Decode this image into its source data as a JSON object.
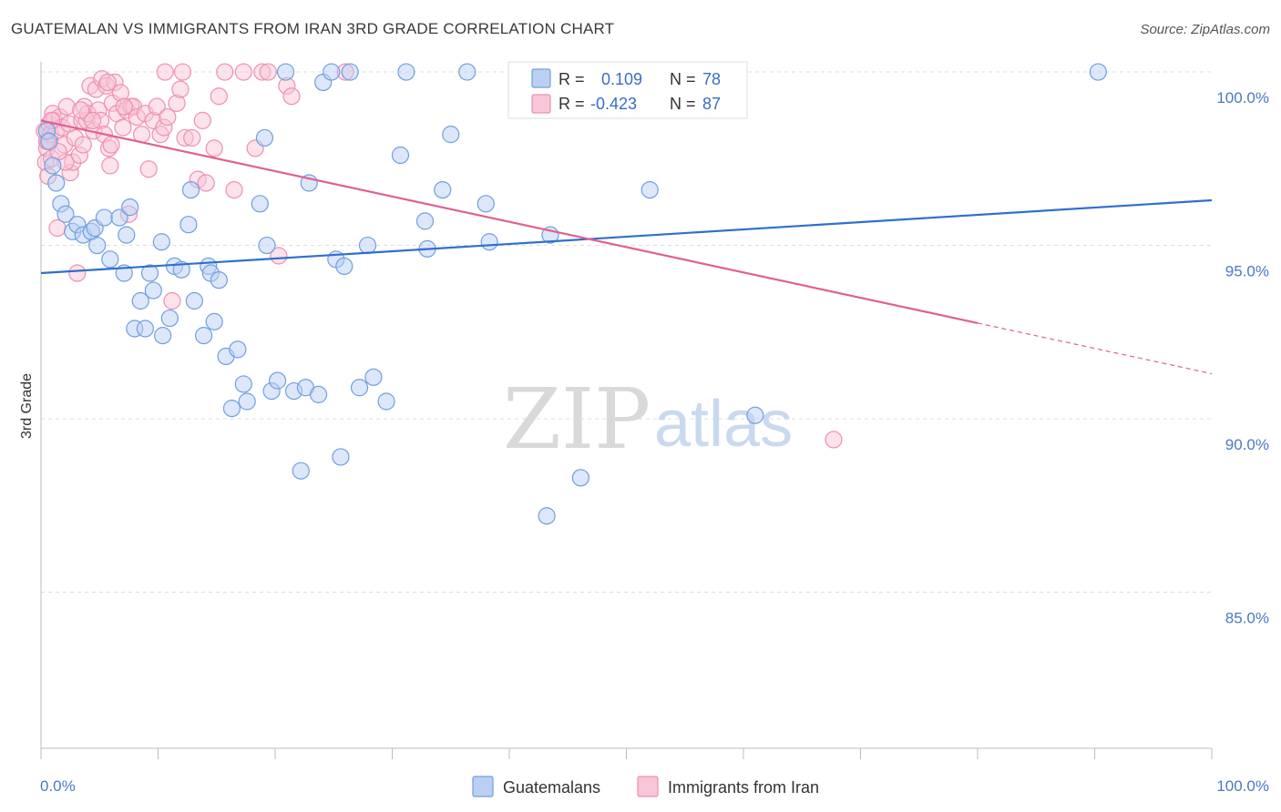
{
  "title": "GUATEMALAN VS IMMIGRANTS FROM IRAN 3RD GRADE CORRELATION CHART",
  "source": "Source: ZipAtlas.com",
  "watermark": {
    "zip": "ZIP",
    "atlas": "atlas"
  },
  "colors": {
    "blue": "#6f9fe0",
    "blue_fill": "#b9d0f3",
    "blue_line": "#2f6fcc",
    "pink": "#ef8fb0",
    "pink_fill": "#f8c6d8",
    "pink_line": "#e0608f",
    "tick": "#4a78c4",
    "grid": "#dddddd"
  },
  "legend_top": {
    "rows": [
      {
        "r_label": "R =",
        "r_value": "0.109",
        "n_label": "N =",
        "n_value": "78"
      },
      {
        "r_label": "R =",
        "r_value": "-0.423",
        "n_label": "N =",
        "n_value": "87"
      }
    ]
  },
  "legend_bottom": [
    "Guatemalans",
    "Immigrants from Iran"
  ],
  "chart_data": {
    "type": "scatter",
    "xlabel": "",
    "ylabel": "3rd Grade",
    "xlim": [
      0,
      100
    ],
    "ylim": [
      80.5,
      100.5
    ],
    "x_tick_labels": [
      "0.0%",
      "100.0%"
    ],
    "y_ticks": [
      85,
      90,
      95,
      100
    ],
    "y_tick_labels": [
      "85.0%",
      "90.0%",
      "95.0%",
      "100.0%"
    ],
    "grid": true,
    "series": [
      {
        "name": "Guatemalans",
        "R": 0.109,
        "N": 78,
        "trend": {
          "x0": 0,
          "y0": 94.2,
          "x1": 100,
          "y1": 96.3,
          "solid_to": 100
        },
        "points": [
          [
            0.5,
            98.3
          ],
          [
            0.7,
            98.0
          ],
          [
            1.0,
            97.3
          ],
          [
            1.3,
            96.8
          ],
          [
            1.7,
            96.2
          ],
          [
            2.1,
            95.9
          ],
          [
            2.7,
            95.4
          ],
          [
            3.1,
            95.6
          ],
          [
            3.6,
            95.3
          ],
          [
            4.3,
            95.4
          ],
          [
            4.6,
            95.5
          ],
          [
            4.8,
            95.0
          ],
          [
            5.4,
            95.8
          ],
          [
            5.9,
            94.6
          ],
          [
            6.7,
            95.8
          ],
          [
            7.1,
            94.2
          ],
          [
            7.3,
            95.3
          ],
          [
            7.6,
            96.1
          ],
          [
            8.0,
            92.6
          ],
          [
            8.5,
            93.4
          ],
          [
            8.9,
            92.6
          ],
          [
            9.3,
            94.2
          ],
          [
            9.6,
            93.7
          ],
          [
            10.3,
            95.1
          ],
          [
            10.4,
            92.4
          ],
          [
            11.0,
            92.9
          ],
          [
            11.4,
            94.4
          ],
          [
            12.0,
            94.3
          ],
          [
            12.6,
            95.6
          ],
          [
            12.8,
            96.6
          ],
          [
            13.1,
            93.4
          ],
          [
            13.9,
            92.4
          ],
          [
            14.3,
            94.4
          ],
          [
            14.5,
            94.2
          ],
          [
            14.8,
            92.8
          ],
          [
            15.2,
            94.0
          ],
          [
            15.8,
            91.8
          ],
          [
            16.3,
            90.3
          ],
          [
            16.8,
            92.0
          ],
          [
            17.3,
            91.0
          ],
          [
            17.6,
            90.5
          ],
          [
            18.7,
            96.2
          ],
          [
            19.1,
            98.1
          ],
          [
            19.3,
            95.0
          ],
          [
            19.7,
            90.8
          ],
          [
            20.2,
            91.1
          ],
          [
            20.9,
            100.0
          ],
          [
            21.6,
            90.8
          ],
          [
            22.2,
            88.5
          ],
          [
            22.6,
            90.9
          ],
          [
            22.9,
            96.8
          ],
          [
            23.7,
            90.7
          ],
          [
            24.1,
            99.7
          ],
          [
            24.8,
            100.0
          ],
          [
            25.2,
            94.6
          ],
          [
            25.6,
            88.9
          ],
          [
            25.9,
            94.4
          ],
          [
            26.4,
            100.0
          ],
          [
            27.2,
            90.9
          ],
          [
            27.9,
            95.0
          ],
          [
            28.4,
            91.2
          ],
          [
            29.5,
            90.5
          ],
          [
            30.7,
            97.6
          ],
          [
            31.2,
            100.0
          ],
          [
            32.8,
            95.7
          ],
          [
            33.0,
            94.9
          ],
          [
            34.3,
            96.6
          ],
          [
            35.0,
            98.2
          ],
          [
            36.4,
            100.0
          ],
          [
            38.0,
            96.2
          ],
          [
            38.3,
            95.1
          ],
          [
            43.2,
            87.2
          ],
          [
            43.5,
            95.3
          ],
          [
            46.1,
            88.3
          ],
          [
            52.0,
            96.6
          ],
          [
            58.2,
            100.0
          ],
          [
            61.0,
            90.1
          ],
          [
            90.3,
            100.0
          ]
        ]
      },
      {
        "name": "Immigrants from Iran",
        "R": -0.423,
        "N": 87,
        "trend": {
          "x0": 0,
          "y0": 98.6,
          "x1": 100,
          "y1": 91.3,
          "solid_to": 80
        },
        "points": [
          [
            0.3,
            98.3
          ],
          [
            0.4,
            97.4
          ],
          [
            0.5,
            97.8
          ],
          [
            0.6,
            98.0
          ],
          [
            0.7,
            98.5
          ],
          [
            0.8,
            98.2
          ],
          [
            0.9,
            97.5
          ],
          [
            1.0,
            98.8
          ],
          [
            1.1,
            98.6
          ],
          [
            1.3,
            98.3
          ],
          [
            1.4,
            95.5
          ],
          [
            1.6,
            98.7
          ],
          [
            1.8,
            98.4
          ],
          [
            2.0,
            97.9
          ],
          [
            2.2,
            99.0
          ],
          [
            2.4,
            98.5
          ],
          [
            2.5,
            97.1
          ],
          [
            2.7,
            97.4
          ],
          [
            2.9,
            98.1
          ],
          [
            3.1,
            94.2
          ],
          [
            3.3,
            97.6
          ],
          [
            3.5,
            98.6
          ],
          [
            3.6,
            97.9
          ],
          [
            3.7,
            99.0
          ],
          [
            3.9,
            98.6
          ],
          [
            4.0,
            98.8
          ],
          [
            4.2,
            99.6
          ],
          [
            4.5,
            98.3
          ],
          [
            4.7,
            99.5
          ],
          [
            4.9,
            98.9
          ],
          [
            5.1,
            98.6
          ],
          [
            5.2,
            99.8
          ],
          [
            5.4,
            98.2
          ],
          [
            5.6,
            99.6
          ],
          [
            5.8,
            97.8
          ],
          [
            5.9,
            97.3
          ],
          [
            6.1,
            99.1
          ],
          [
            6.3,
            99.7
          ],
          [
            6.5,
            98.8
          ],
          [
            6.8,
            99.4
          ],
          [
            7.0,
            98.4
          ],
          [
            7.3,
            98.9
          ],
          [
            7.5,
            95.9
          ],
          [
            7.7,
            99.0
          ],
          [
            7.9,
            99.0
          ],
          [
            8.2,
            98.7
          ],
          [
            8.6,
            98.2
          ],
          [
            8.9,
            98.8
          ],
          [
            9.2,
            97.2
          ],
          [
            9.6,
            98.6
          ],
          [
            9.9,
            99.0
          ],
          [
            10.2,
            98.2
          ],
          [
            10.5,
            98.4
          ],
          [
            10.8,
            98.7
          ],
          [
            11.2,
            93.4
          ],
          [
            11.6,
            99.1
          ],
          [
            11.9,
            99.5
          ],
          [
            12.3,
            98.1
          ],
          [
            12.9,
            98.1
          ],
          [
            13.4,
            96.9
          ],
          [
            13.8,
            98.6
          ],
          [
            14.1,
            96.8
          ],
          [
            14.8,
            97.8
          ],
          [
            15.2,
            99.3
          ],
          [
            15.7,
            100.0
          ],
          [
            16.5,
            96.6
          ],
          [
            17.3,
            100.0
          ],
          [
            18.3,
            97.8
          ],
          [
            18.9,
            100.0
          ],
          [
            19.4,
            100.0
          ],
          [
            20.3,
            94.7
          ],
          [
            21.0,
            99.6
          ],
          [
            21.4,
            99.3
          ],
          [
            26.0,
            100.0
          ],
          [
            67.7,
            89.4
          ],
          [
            10.6,
            100.0
          ],
          [
            7.1,
            99.0
          ],
          [
            6.0,
            97.9
          ],
          [
            4.4,
            98.6
          ],
          [
            3.4,
            98.9
          ],
          [
            2.1,
            97.4
          ],
          [
            1.5,
            97.7
          ],
          [
            0.9,
            98.6
          ],
          [
            0.6,
            97.0
          ],
          [
            0.5,
            98.0
          ],
          [
            12.1,
            100.0
          ],
          [
            5.7,
            99.7
          ]
        ]
      }
    ]
  }
}
